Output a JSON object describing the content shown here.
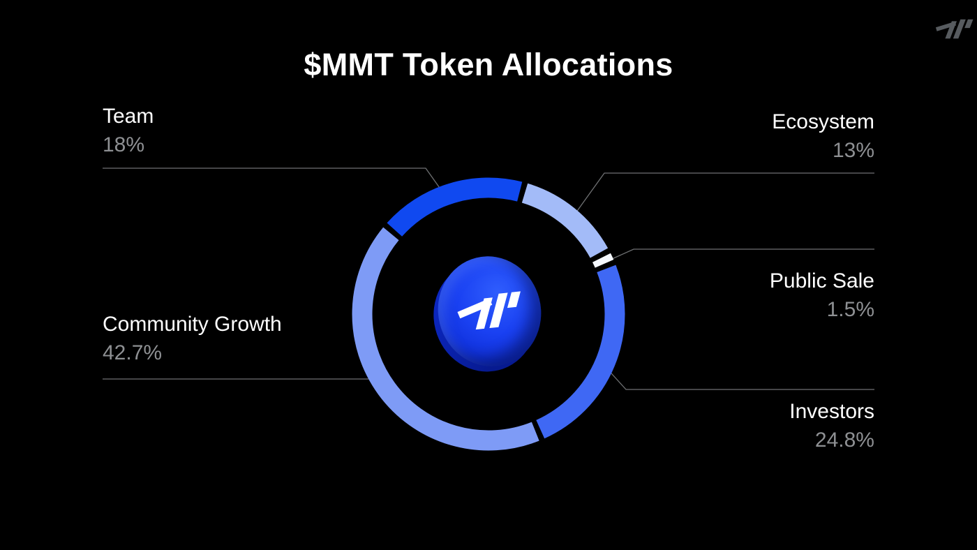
{
  "header": {
    "title": "$MMT Token Allocations"
  },
  "icons": {
    "brand_logo": "momentum-mark",
    "center_coin": "momentum-coin"
  },
  "chart_data": {
    "type": "pie",
    "donut": true,
    "title": "$MMT Token Allocations",
    "unit": "%",
    "segments": [
      {
        "label": "Team",
        "value": 18,
        "display": "18%",
        "color": "#1049f0",
        "callout_side": "top-left"
      },
      {
        "label": "Ecosystem",
        "value": 13,
        "display": "13%",
        "color": "#a3bbf8",
        "callout_side": "top-right"
      },
      {
        "label": "Public Sale",
        "value": 1.5,
        "display": "1.5%",
        "color": "#f4f7fd",
        "callout_side": "right"
      },
      {
        "label": "Investors",
        "value": 24.8,
        "display": "24.8%",
        "color": "#3f68f4",
        "callout_side": "bottom-right"
      },
      {
        "label": "Community Growth",
        "value": 42.7,
        "display": "42.7%",
        "color": "#7e9bf6",
        "callout_side": "bottom-left"
      }
    ],
    "start_angle_deg": -49.3,
    "segment_gap_deg": 2.4,
    "legend_position": "callouts-with-leader-lines",
    "background": "#000000",
    "label_color": "#ffffff",
    "value_color": "#8e9093",
    "leader_line_color": "#6f7173"
  }
}
